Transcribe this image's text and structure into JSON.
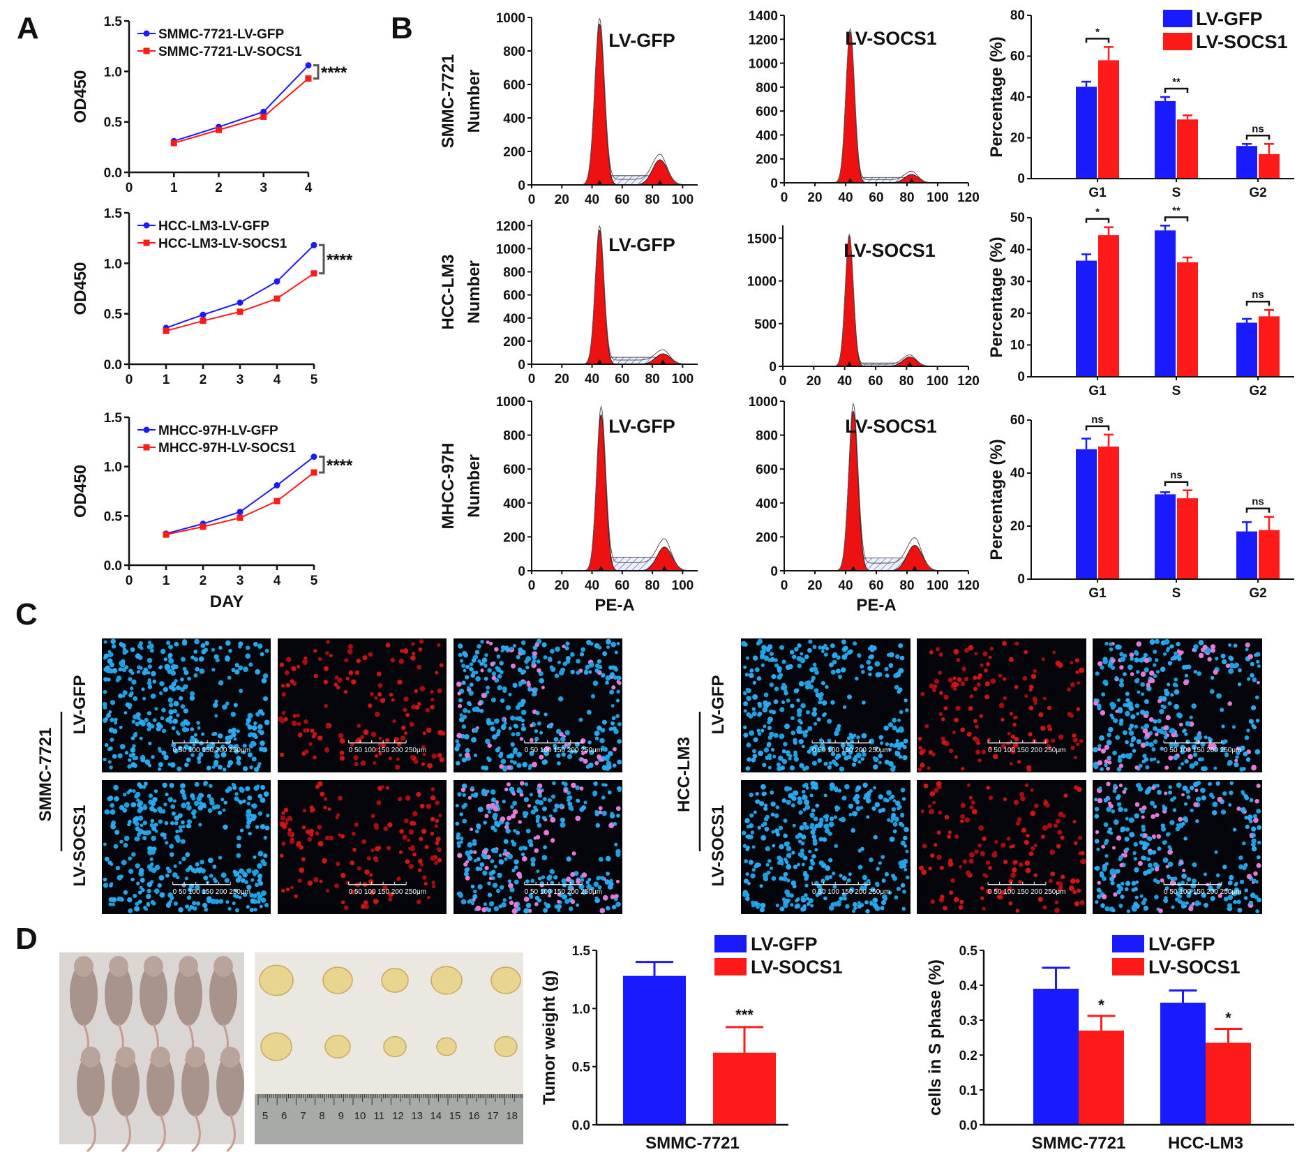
{
  "panel_letters": [
    "A",
    "B",
    "C",
    "D"
  ],
  "colors": {
    "gfp": "#1a1aff",
    "socs1": "#ff1a1a",
    "axis": "#111111",
    "micro_bg": "#03050a",
    "photo_bg": "#d9d6d3",
    "tumor": "#e8d690"
  },
  "panelA": {
    "xlabel": "DAY",
    "ylabel": "OD450",
    "yticks": [
      "0.0",
      "0.5",
      "1.0",
      "1.5"
    ],
    "significance": "****",
    "charts": [
      {
        "xticks": [
          "0",
          "1",
          "2",
          "3",
          "4"
        ],
        "series_gfp": "SMMC-7721-LV-GFP",
        "series_socs1": "SMMC-7721-LV-SOCS1"
      },
      {
        "xticks": [
          "0",
          "1",
          "2",
          "3",
          "4",
          "5"
        ],
        "series_gfp": "HCC-LM3-LV-GFP",
        "series_socs1": "HCC-LM3-LV-SOCS1"
      },
      {
        "xticks": [
          "0",
          "1",
          "2",
          "3",
          "4",
          "5"
        ],
        "series_gfp": "MHCC-97H-LV-GFP",
        "series_socs1": "MHCC-97H-LV-SOCS1"
      }
    ]
  },
  "panelB": {
    "row_labels": [
      "SMMC-7721",
      "HCC-LM3",
      "MHCC-97H"
    ],
    "hist_ylabel": "Number",
    "hist_xlabel": "PE-A",
    "group_labels": [
      "LV-GFP",
      "LV-SOCS1"
    ],
    "hist_yticks": [
      [
        "0",
        "200",
        "400",
        "600",
        "800",
        "1000"
      ],
      [
        "0",
        "200",
        "400",
        "600",
        "800",
        "1000",
        "1200",
        "1400"
      ],
      [
        "0",
        "200",
        "400",
        "600",
        "800",
        "1000",
        "1200"
      ],
      [
        "0",
        "500",
        "1000",
        "1500"
      ],
      [
        "0",
        "200",
        "400",
        "600",
        "800",
        "1000"
      ],
      [
        "0",
        "200",
        "400",
        "600",
        "800",
        "1000"
      ]
    ],
    "hist_xticks_gfp": [
      "0",
      "20",
      "40",
      "60",
      "80",
      "100"
    ],
    "hist_xticks_socs1": [
      "0",
      "20",
      "40",
      "60",
      "80",
      "100",
      "120"
    ],
    "bar_ylabel": "Percentage (%)",
    "bar_categories": [
      "G1",
      "S",
      "G2"
    ],
    "legend": [
      "LV-GFP",
      "LV-SOCS1"
    ]
  },
  "panelC": {
    "groups": [
      "SMMC-7721",
      "HCC-LM3"
    ],
    "conditions": [
      "LV-GFP",
      "LV-SOCS1"
    ],
    "scale_bar": "0   50  100  150  200  250μm"
  },
  "panelD": {
    "ruler_numbers": [
      "5",
      "6",
      "7",
      "8",
      "9",
      "10",
      "11",
      "12",
      "13",
      "14",
      "15",
      "16",
      "17",
      "18"
    ],
    "legend": [
      "LV-GFP",
      "LV-SOCS1"
    ]
  },
  "chart_data": [
    {
      "type": "line",
      "panel": "A",
      "title": "",
      "xlabel": "",
      "ylabel": "OD450",
      "x": [
        1,
        2,
        3,
        4
      ],
      "ylim": [
        0,
        1.5
      ],
      "xlim": [
        0,
        4
      ],
      "series": [
        {
          "name": "SMMC-7721-LV-GFP",
          "values": [
            0.31,
            0.45,
            0.6,
            1.06
          ]
        },
        {
          "name": "SMMC-7721-LV-SOCS1",
          "values": [
            0.29,
            0.42,
            0.55,
            0.93
          ]
        }
      ],
      "annotation": "****"
    },
    {
      "type": "line",
      "panel": "A",
      "title": "",
      "xlabel": "",
      "ylabel": "OD450",
      "x": [
        1,
        2,
        3,
        4,
        5
      ],
      "ylim": [
        0,
        1.5
      ],
      "xlim": [
        0,
        5
      ],
      "series": [
        {
          "name": "HCC-LM3-LV-GFP",
          "values": [
            0.36,
            0.49,
            0.61,
            0.82,
            1.18
          ]
        },
        {
          "name": "HCC-LM3-LV-SOCS1",
          "values": [
            0.33,
            0.43,
            0.52,
            0.65,
            0.9
          ]
        }
      ],
      "annotation": "****"
    },
    {
      "type": "line",
      "panel": "A",
      "title": "",
      "xlabel": "DAY",
      "ylabel": "OD450",
      "x": [
        1,
        2,
        3,
        4,
        5
      ],
      "ylim": [
        0,
        1.5
      ],
      "xlim": [
        0,
        5
      ],
      "series": [
        {
          "name": "MHCC-97H-LV-GFP",
          "values": [
            0.32,
            0.42,
            0.54,
            0.81,
            1.1
          ]
        },
        {
          "name": "MHCC-97H-LV-SOCS1",
          "values": [
            0.31,
            0.39,
            0.48,
            0.65,
            0.94
          ]
        }
      ],
      "annotation": "****"
    },
    {
      "type": "area",
      "panel": "B",
      "row": "SMMC-7721",
      "group": "LV-GFP",
      "ylabel": "Number",
      "ylim": [
        0,
        1000
      ],
      "xlim": [
        0,
        110
      ],
      "peaks": [
        {
          "x": 45,
          "y": 960,
          "w": 3.2
        },
        {
          "x": 85,
          "y": 150,
          "w": 5
        }
      ],
      "sphase": 55
    },
    {
      "type": "area",
      "panel": "B",
      "row": "SMMC-7721",
      "group": "LV-SOCS1",
      "ylabel": "",
      "ylim": [
        0,
        1400
      ],
      "xlim": [
        0,
        120
      ],
      "peaks": [
        {
          "x": 43,
          "y": 1260,
          "w": 2.8
        },
        {
          "x": 83,
          "y": 70,
          "w": 4.5
        }
      ],
      "sphase": 45
    },
    {
      "type": "area",
      "panel": "B",
      "row": "HCC-LM3",
      "group": "LV-GFP",
      "ylabel": "Number",
      "ylim": [
        0,
        1250
      ],
      "xlim": [
        0,
        110
      ],
      "peaks": [
        {
          "x": 45,
          "y": 1160,
          "w": 2.9
        },
        {
          "x": 87,
          "y": 90,
          "w": 5
        }
      ],
      "sphase": 60
    },
    {
      "type": "area",
      "panel": "B",
      "row": "HCC-LM3",
      "group": "LV-SOCS1",
      "ylabel": "",
      "ylim": [
        0,
        1650
      ],
      "xlim": [
        0,
        120
      ],
      "peaks": [
        {
          "x": 43,
          "y": 1520,
          "w": 2.6
        },
        {
          "x": 82,
          "y": 110,
          "w": 4.5
        }
      ],
      "sphase": 40
    },
    {
      "type": "area",
      "panel": "B",
      "row": "MHCC-97H",
      "group": "LV-GFP",
      "ylabel": "Number",
      "xlabel": "PE-A",
      "ylim": [
        0,
        1000
      ],
      "xlim": [
        0,
        110
      ],
      "peaks": [
        {
          "x": 46,
          "y": 920,
          "w": 3.0
        },
        {
          "x": 88,
          "y": 140,
          "w": 5
        }
      ],
      "sphase": 80
    },
    {
      "type": "area",
      "panel": "B",
      "row": "MHCC-97H",
      "group": "LV-SOCS1",
      "ylabel": "",
      "xlabel": "PE-A",
      "ylim": [
        0,
        1000
      ],
      "xlim": [
        0,
        120
      ],
      "peaks": [
        {
          "x": 45,
          "y": 940,
          "w": 3.0
        },
        {
          "x": 85,
          "y": 150,
          "w": 5
        }
      ],
      "sphase": 75
    },
    {
      "type": "bar",
      "panel": "B",
      "row": "SMMC-7721",
      "ylabel": "Percentage (%)",
      "ylim": [
        0,
        80
      ],
      "categories": [
        "G1",
        "S",
        "G2"
      ],
      "series": [
        {
          "name": "LV-GFP",
          "values": [
            45,
            38,
            16
          ],
          "err": [
            2.5,
            2,
            1
          ]
        },
        {
          "name": "LV-SOCS1",
          "values": [
            58,
            29,
            12
          ],
          "err": [
            6.5,
            2,
            5
          ]
        }
      ],
      "sig": [
        "*",
        "**",
        "ns"
      ]
    },
    {
      "type": "bar",
      "panel": "B",
      "row": "HCC-LM3",
      "ylabel": "Percentage (%)",
      "ylim": [
        0,
        50
      ],
      "categories": [
        "G1",
        "S",
        "G2"
      ],
      "series": [
        {
          "name": "LV-GFP",
          "values": [
            36.5,
            46,
            17
          ],
          "err": [
            2,
            1.5,
            1.2
          ]
        },
        {
          "name": "LV-SOCS1",
          "values": [
            44.5,
            36,
            19
          ],
          "err": [
            2.5,
            1.5,
            2
          ]
        }
      ],
      "sig": [
        "*",
        "**",
        "ns"
      ]
    },
    {
      "type": "bar",
      "panel": "B",
      "row": "MHCC-97H",
      "ylabel": "Percentage (%)",
      "ylim": [
        0,
        60
      ],
      "categories": [
        "G1",
        "S",
        "G2"
      ],
      "series": [
        {
          "name": "LV-GFP",
          "values": [
            49,
            32,
            18
          ],
          "err": [
            4,
            0.8,
            3.5
          ]
        },
        {
          "name": "LV-SOCS1",
          "values": [
            50,
            30.5,
            18.5
          ],
          "err": [
            4.5,
            3,
            5
          ]
        }
      ],
      "sig": [
        "ns",
        "ns",
        "ns"
      ]
    },
    {
      "type": "bar",
      "panel": "D",
      "ylabel": "Tumor weight (g)",
      "xlabel": "SMMC-7721",
      "ylim": [
        0,
        1.5
      ],
      "categories": [
        "LV-GFP",
        "LV-SOCS1"
      ],
      "values": [
        1.28,
        0.62
      ],
      "err": [
        0.12,
        0.22
      ],
      "sig": [
        "",
        "***"
      ]
    },
    {
      "type": "bar",
      "panel": "D",
      "ylabel": "cells in S phase (%)",
      "ylim": [
        0,
        0.5
      ],
      "categories": [
        "SMMC-7721",
        "HCC-LM3"
      ],
      "series": [
        {
          "name": "LV-GFP",
          "values": [
            0.39,
            0.35
          ],
          "err": [
            0.06,
            0.035
          ]
        },
        {
          "name": "LV-SOCS1",
          "values": [
            0.27,
            0.235
          ],
          "err": [
            0.042,
            0.04
          ]
        }
      ],
      "sig": [
        "*",
        "*"
      ]
    }
  ]
}
